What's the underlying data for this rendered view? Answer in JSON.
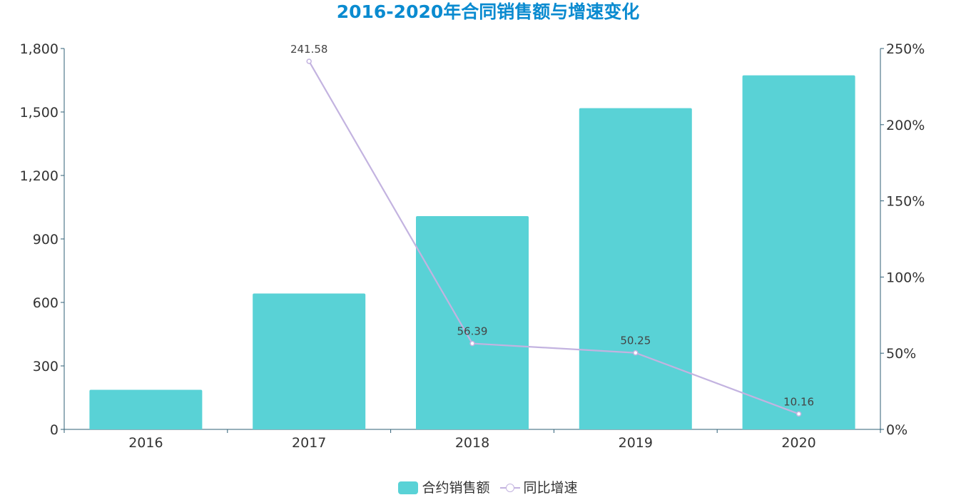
{
  "title": "2016-2020年合同销售额与增速变化",
  "colors": {
    "title": "#0a8bd0",
    "bar": "#59d2d6",
    "line": "#c3b3e0",
    "axis": "#2f5f76"
  },
  "legend": {
    "bar_label": "合约销售额",
    "line_label": "同比增速"
  },
  "chart_data": {
    "type": "bar",
    "title": "2016-2020年合同销售额与增速变化",
    "categories": [
      "2016",
      "2017",
      "2018",
      "2019",
      "2020"
    ],
    "series": [
      {
        "name": "合约销售额",
        "type": "bar",
        "axis": "left",
        "values": [
          187,
          642,
          1008,
          1518,
          1673
        ]
      },
      {
        "name": "同比增速",
        "type": "line",
        "axis": "right",
        "values": [
          null,
          241.58,
          56.39,
          50.25,
          10.16
        ],
        "labels": [
          "",
          "241.58",
          "56.39",
          "50.25",
          "10.16"
        ]
      }
    ],
    "y_left": {
      "min": 0,
      "max": 1800,
      "ticks": [
        0,
        300,
        600,
        900,
        1200,
        1500,
        1800
      ],
      "tick_labels": [
        "0",
        "300",
        "600",
        "900",
        "1,200",
        "1,500",
        "1,800"
      ]
    },
    "y_right": {
      "min": 0,
      "max": 250,
      "ticks": [
        0,
        50,
        100,
        150,
        200,
        250
      ],
      "tick_labels": [
        "0%",
        "50%",
        "100%",
        "150%",
        "200%",
        "250%"
      ]
    },
    "xlabel": "",
    "ylabel": "",
    "grid": false,
    "legend_position": "bottom"
  }
}
